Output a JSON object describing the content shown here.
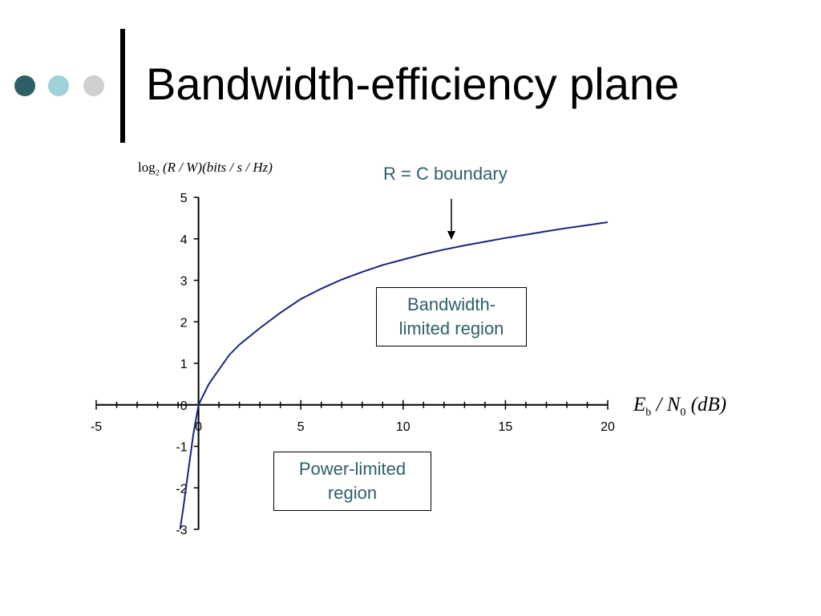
{
  "slide": {
    "title": "Bandwidth-efficiency plane",
    "dots": [
      {
        "name": "dark-dot",
        "color": "#2f5f66"
      },
      {
        "name": "light-dot",
        "color": "#9fd1d6"
      },
      {
        "name": "gray-dot",
        "color": "#cfcfcf"
      }
    ]
  },
  "chart_data": {
    "type": "line",
    "ylabel_parts": {
      "log": "log",
      "base": "2",
      "lhs": "(R / W)",
      "unit": "(bits / s / Hz)"
    },
    "xlabel_parts": {
      "e": "E",
      "e_sub": "b",
      "mid": " / N",
      "n_sub": "0",
      "unit": " (dB)"
    },
    "xlim": [
      -5,
      20
    ],
    "ylim": [
      -3,
      5
    ],
    "xticks": [
      "-5",
      "0",
      "5",
      "10",
      "15",
      "20"
    ],
    "yticks": [
      "5",
      "4",
      "3",
      "2",
      "1",
      "0",
      "-1",
      "-2",
      "-3"
    ],
    "line_color": "#1a237e",
    "series": [
      {
        "x": [
          -0.9,
          -0.75,
          -0.5,
          -0.25,
          0,
          0.5,
          1,
          1.5,
          2,
          3,
          4,
          5,
          6,
          7,
          8,
          9,
          10,
          11,
          12,
          13,
          14,
          15,
          16,
          17,
          18,
          19,
          20
        ],
        "y": [
          -3,
          -2.5,
          -1.6,
          -0.7,
          0,
          0.5,
          0.85,
          1.2,
          1.45,
          1.85,
          2.22,
          2.55,
          2.8,
          3.02,
          3.2,
          3.37,
          3.5,
          3.63,
          3.74,
          3.84,
          3.93,
          4.02,
          4.1,
          4.18,
          4.26,
          4.33,
          4.4
        ]
      }
    ],
    "annotations": {
      "boundary": "R = C boundary",
      "bandwidth_region": [
        "Bandwidth-",
        "limited region"
      ],
      "power_region": [
        "Power-limited",
        "region"
      ]
    }
  }
}
